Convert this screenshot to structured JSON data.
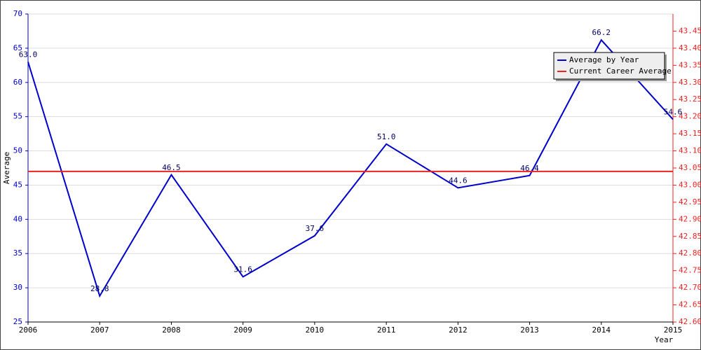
{
  "chart_data": {
    "type": "line",
    "x_label": "Year",
    "y_label": "Average",
    "x": [
      2006,
      2007,
      2008,
      2009,
      2010,
      2011,
      2012,
      2013,
      2014,
      2015
    ],
    "xlim": [
      2006,
      2015
    ],
    "xticks": [
      2006,
      2007,
      2008,
      2009,
      2010,
      2011,
      2012,
      2013,
      2014,
      2015
    ],
    "ylim": [
      25,
      70
    ],
    "yticks": [
      25,
      30,
      35,
      40,
      45,
      50,
      55,
      60,
      65,
      70
    ],
    "y2lim": [
      42.6,
      43.5
    ],
    "y2ticks": [
      {
        "value": 42.6,
        "label": "42.60"
      },
      42.65,
      {
        "value": 42.7,
        "label": "42.70"
      },
      42.75,
      {
        "value": 42.8,
        "label": "42.80"
      },
      42.85,
      {
        "value": 42.9,
        "label": "42.90"
      },
      42.95,
      {
        "value": 43,
        "label": "43.00"
      },
      43.05,
      {
        "value": 43.1,
        "label": "43.10"
      },
      43.15,
      {
        "value": 43.2,
        "label": "43.20"
      },
      43.25,
      {
        "value": 43.3,
        "label": "43.30"
      },
      43.35,
      {
        "value": 43.4,
        "label": "43.40"
      },
      43.45
    ],
    "grid": true,
    "legend": "top-right",
    "series": [
      {
        "name": "Average by Year",
        "color": "#0000cc",
        "values": [
          63.0,
          28.8,
          46.5,
          31.6,
          37.6,
          51.0,
          44.6,
          46.4,
          66.2,
          54.6
        ],
        "value_labels": [
          "63.0",
          "28.8",
          "46.5",
          "31.6",
          "37.6",
          "51.0",
          "44.6",
          "46.4",
          "66.2",
          "54.6"
        ]
      },
      {
        "name": "Current Career Average",
        "color": "#ee2222",
        "axis": "y2",
        "values": [
          43.04,
          43.04,
          43.04,
          43.04,
          43.04,
          43.04,
          43.04,
          43.04,
          43.04,
          43.04
        ]
      }
    ]
  }
}
